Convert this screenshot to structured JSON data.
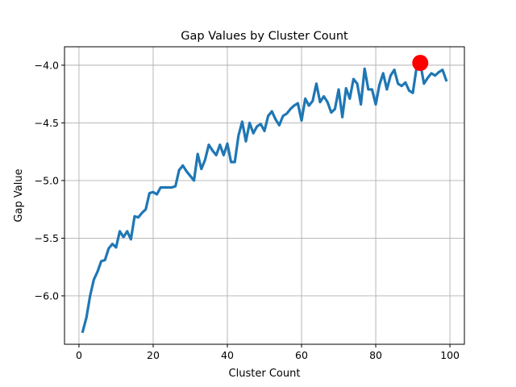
{
  "chart_data": {
    "type": "line",
    "title": "Gap Values by Cluster Count",
    "xlabel": "Cluster Count",
    "ylabel": "Gap Value",
    "xlim": [
      -3.9,
      103.9
    ],
    "ylim": [
      -6.42,
      -3.84
    ],
    "xticks": [
      0,
      20,
      40,
      60,
      80,
      100
    ],
    "yticks": [
      -6.0,
      -5.5,
      -5.0,
      -4.5,
      -4.0
    ],
    "xtick_labels": [
      "0",
      "20",
      "40",
      "60",
      "80",
      "100"
    ],
    "ytick_labels": [
      "−6.0",
      "−5.5",
      "−5.0",
      "−4.5",
      "−4.0"
    ],
    "grid": true,
    "series": [
      {
        "color": "#1f77b4",
        "x": [
          1,
          2,
          3,
          4,
          5,
          6,
          7,
          8,
          9,
          10,
          11,
          12,
          13,
          14,
          15,
          16,
          17,
          18,
          19,
          20,
          21,
          22,
          23,
          24,
          25,
          26,
          27,
          28,
          29,
          30,
          31,
          32,
          33,
          34,
          35,
          36,
          37,
          38,
          39,
          40,
          41,
          42,
          43,
          44,
          45,
          46,
          47,
          48,
          49,
          50,
          51,
          52,
          53,
          54,
          55,
          56,
          57,
          58,
          59,
          60,
          61,
          62,
          63,
          64,
          65,
          66,
          67,
          68,
          69,
          70,
          71,
          72,
          73,
          74,
          75,
          76,
          77,
          78,
          79,
          80,
          81,
          82,
          83,
          84,
          85,
          86,
          87,
          88,
          89,
          90,
          91,
          92,
          93,
          94,
          95,
          96,
          97,
          98,
          99
        ],
        "y": [
          -6.31,
          -6.19,
          -6.0,
          -5.86,
          -5.79,
          -5.7,
          -5.69,
          -5.59,
          -5.55,
          -5.58,
          -5.44,
          -5.49,
          -5.44,
          -5.51,
          -5.31,
          -5.32,
          -5.28,
          -5.25,
          -5.11,
          -5.1,
          -5.12,
          -5.06,
          -5.06,
          -5.06,
          -5.06,
          -5.05,
          -4.91,
          -4.87,
          -4.92,
          -4.96,
          -5.0,
          -4.77,
          -4.9,
          -4.82,
          -4.69,
          -4.74,
          -4.78,
          -4.69,
          -4.78,
          -4.68,
          -4.84,
          -4.84,
          -4.61,
          -4.49,
          -4.66,
          -4.5,
          -4.59,
          -4.53,
          -4.51,
          -4.57,
          -4.44,
          -4.4,
          -4.47,
          -4.52,
          -4.44,
          -4.42,
          -4.38,
          -4.35,
          -4.33,
          -4.48,
          -4.29,
          -4.35,
          -4.31,
          -4.16,
          -4.32,
          -4.27,
          -4.32,
          -4.41,
          -4.38,
          -4.21,
          -4.45,
          -4.2,
          -4.29,
          -4.12,
          -4.16,
          -4.34,
          -4.03,
          -4.21,
          -4.21,
          -4.34,
          -4.17,
          -4.07,
          -4.21,
          -4.09,
          -4.04,
          -4.16,
          -4.18,
          -4.15,
          -4.22,
          -4.24,
          -4.02,
          -3.98,
          -4.16,
          -4.11,
          -4.07,
          -4.09,
          -4.06,
          -4.04,
          -4.13
        ]
      }
    ],
    "highlight_point": {
      "x": 92,
      "y": -3.98,
      "color": "#ff0000"
    }
  }
}
